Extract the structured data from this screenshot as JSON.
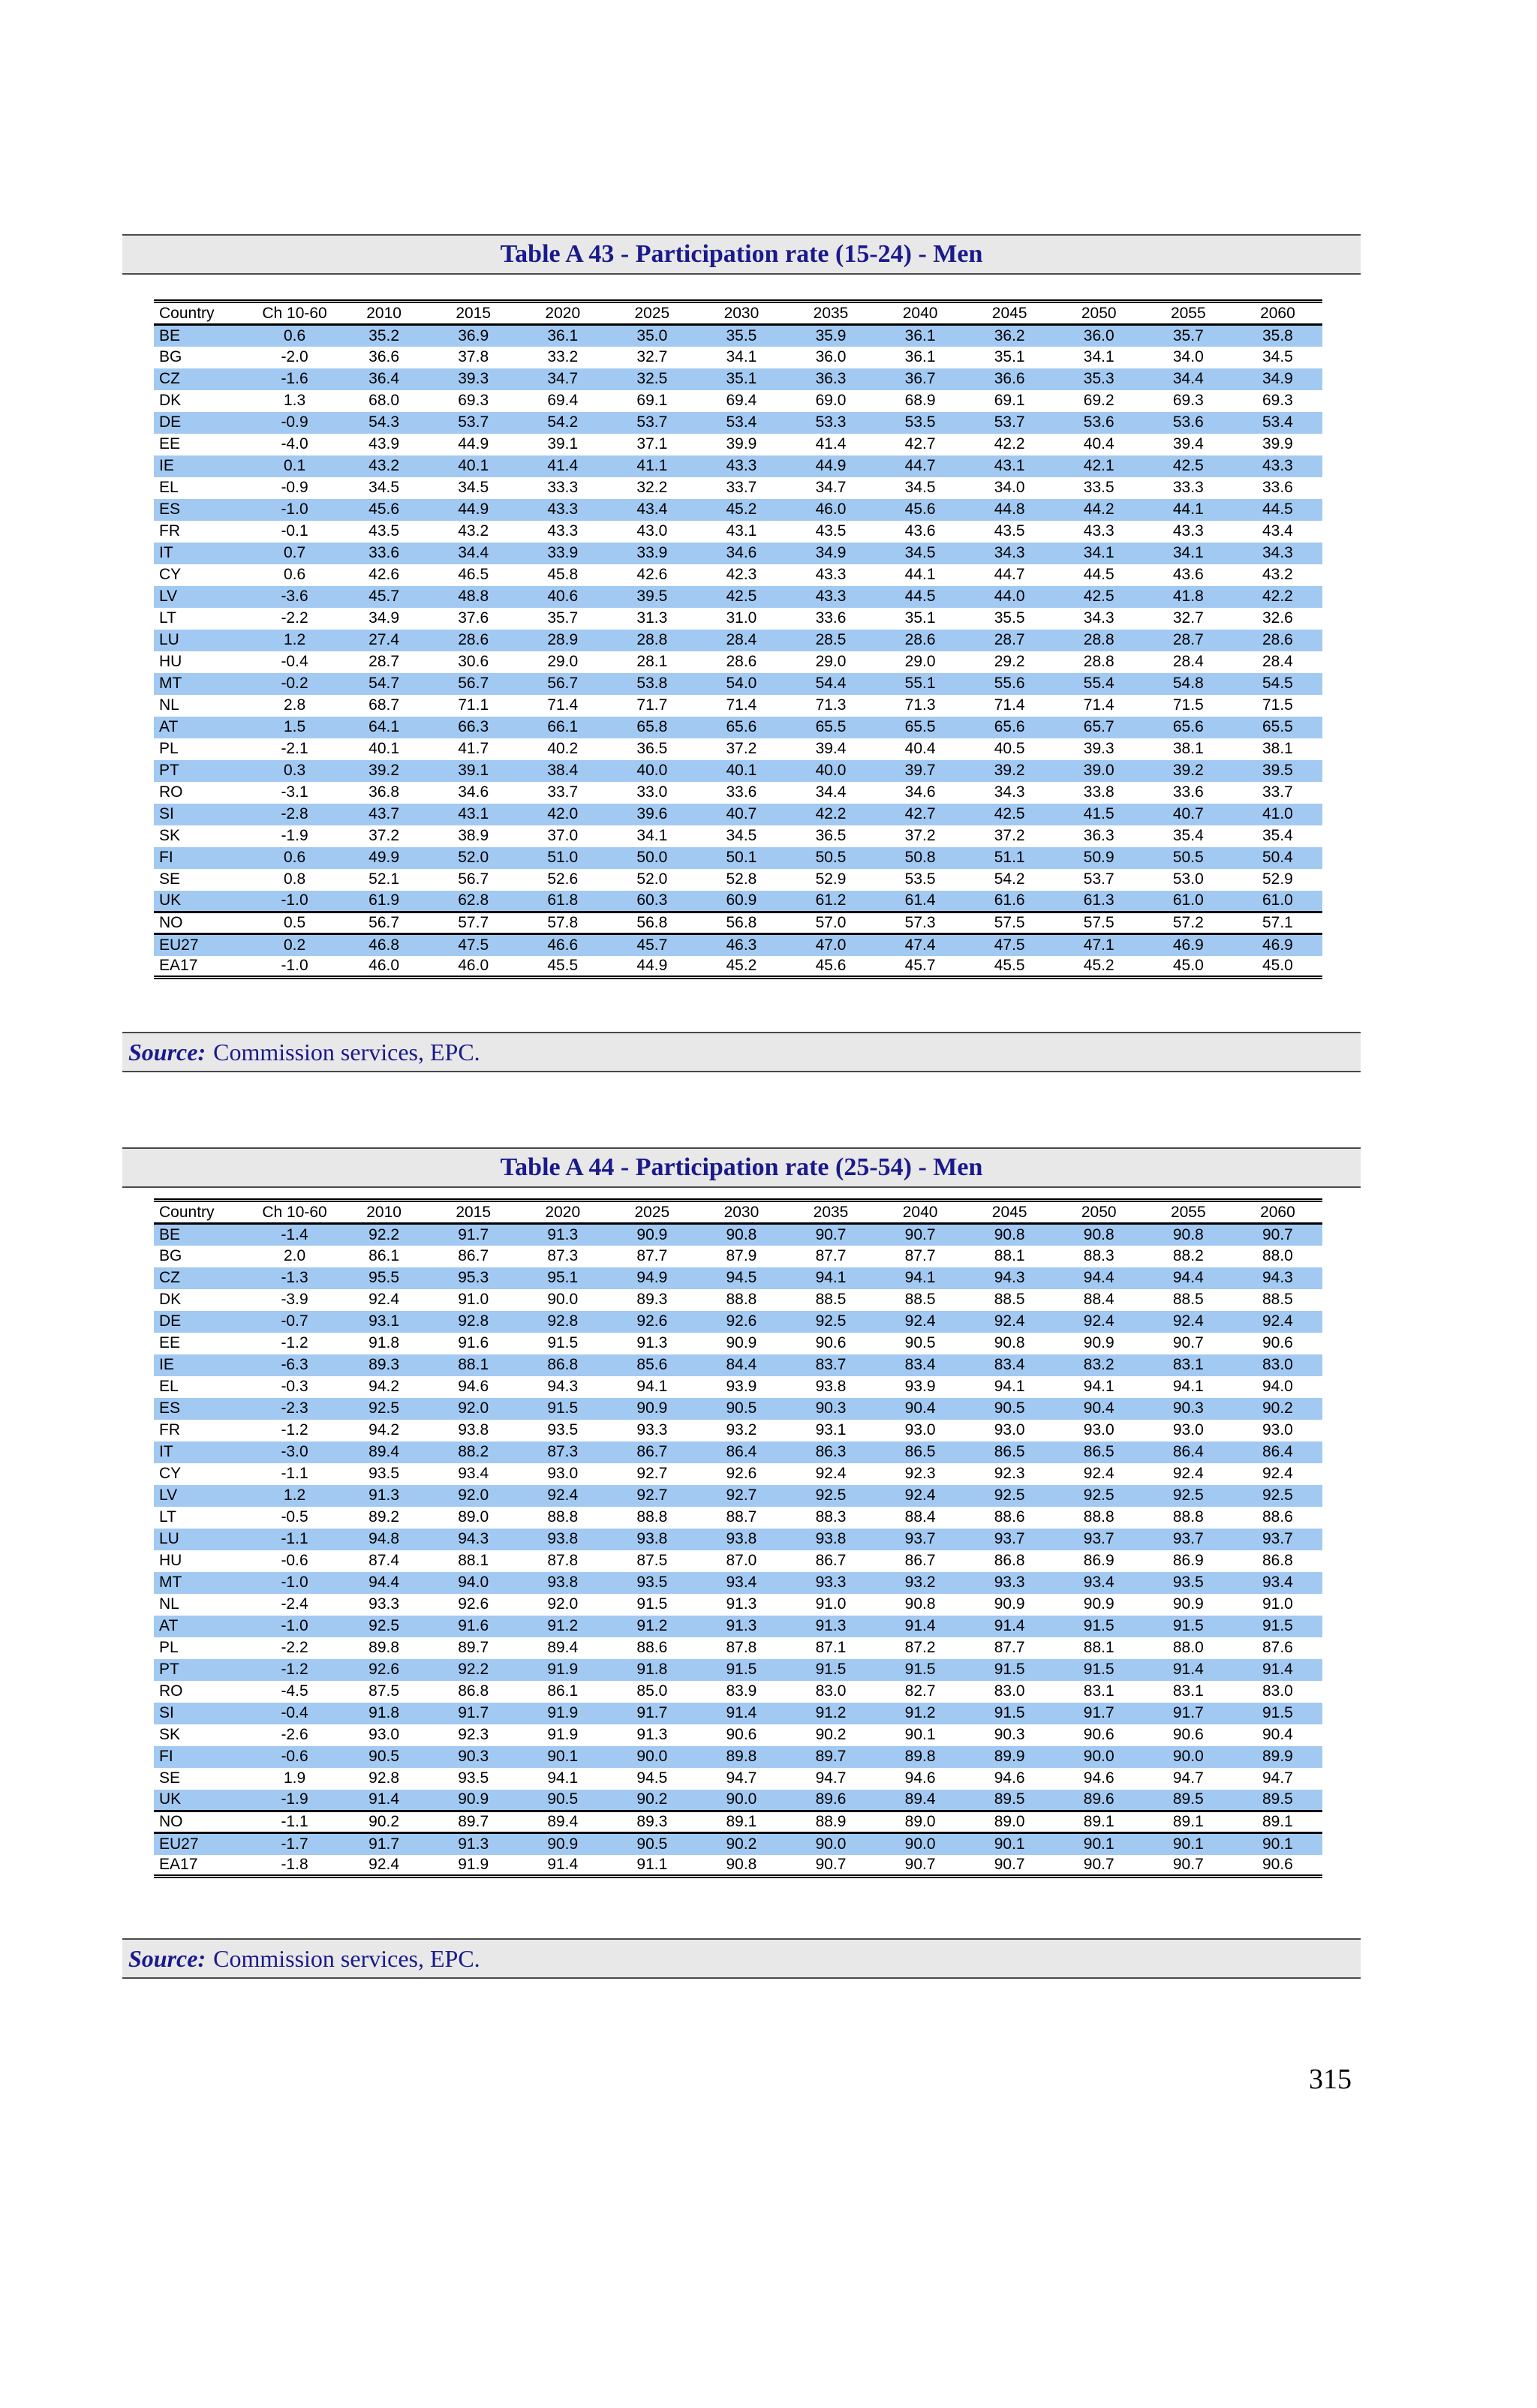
{
  "page": {
    "number": "315"
  },
  "colors": {
    "row_highlight": "#a2c9f2",
    "heading_text": "#1a1a8c",
    "banner_bg": "#e8e8e8"
  },
  "tables": [
    {
      "title": "Table A 43 - Participation rate (15-24) - Men",
      "source_label": "Source:",
      "source_text": "Commission services, EPC.",
      "columns": [
        "Country",
        "Ch 10-60",
        "2010",
        "2015",
        "2020",
        "2025",
        "2030",
        "2035",
        "2040",
        "2045",
        "2050",
        "2055",
        "2060"
      ],
      "thick_border_after": [
        "UK",
        "NO"
      ],
      "rows": [
        [
          "BE",
          "0.6",
          "35.2",
          "36.9",
          "36.1",
          "35.0",
          "35.5",
          "35.9",
          "36.1",
          "36.2",
          "36.0",
          "35.7",
          "35.8"
        ],
        [
          "BG",
          "-2.0",
          "36.6",
          "37.8",
          "33.2",
          "32.7",
          "34.1",
          "36.0",
          "36.1",
          "35.1",
          "34.1",
          "34.0",
          "34.5"
        ],
        [
          "CZ",
          "-1.6",
          "36.4",
          "39.3",
          "34.7",
          "32.5",
          "35.1",
          "36.3",
          "36.7",
          "36.6",
          "35.3",
          "34.4",
          "34.9"
        ],
        [
          "DK",
          "1.3",
          "68.0",
          "69.3",
          "69.4",
          "69.1",
          "69.4",
          "69.0",
          "68.9",
          "69.1",
          "69.2",
          "69.3",
          "69.3"
        ],
        [
          "DE",
          "-0.9",
          "54.3",
          "53.7",
          "54.2",
          "53.7",
          "53.4",
          "53.3",
          "53.5",
          "53.7",
          "53.6",
          "53.6",
          "53.4"
        ],
        [
          "EE",
          "-4.0",
          "43.9",
          "44.9",
          "39.1",
          "37.1",
          "39.9",
          "41.4",
          "42.7",
          "42.2",
          "40.4",
          "39.4",
          "39.9"
        ],
        [
          "IE",
          "0.1",
          "43.2",
          "40.1",
          "41.4",
          "41.1",
          "43.3",
          "44.9",
          "44.7",
          "43.1",
          "42.1",
          "42.5",
          "43.3"
        ],
        [
          "EL",
          "-0.9",
          "34.5",
          "34.5",
          "33.3",
          "32.2",
          "33.7",
          "34.7",
          "34.5",
          "34.0",
          "33.5",
          "33.3",
          "33.6"
        ],
        [
          "ES",
          "-1.0",
          "45.6",
          "44.9",
          "43.3",
          "43.4",
          "45.2",
          "46.0",
          "45.6",
          "44.8",
          "44.2",
          "44.1",
          "44.5"
        ],
        [
          "FR",
          "-0.1",
          "43.5",
          "43.2",
          "43.3",
          "43.0",
          "43.1",
          "43.5",
          "43.6",
          "43.5",
          "43.3",
          "43.3",
          "43.4"
        ],
        [
          "IT",
          "0.7",
          "33.6",
          "34.4",
          "33.9",
          "33.9",
          "34.6",
          "34.9",
          "34.5",
          "34.3",
          "34.1",
          "34.1",
          "34.3"
        ],
        [
          "CY",
          "0.6",
          "42.6",
          "46.5",
          "45.8",
          "42.6",
          "42.3",
          "43.3",
          "44.1",
          "44.7",
          "44.5",
          "43.6",
          "43.2"
        ],
        [
          "LV",
          "-3.6",
          "45.7",
          "48.8",
          "40.6",
          "39.5",
          "42.5",
          "43.3",
          "44.5",
          "44.0",
          "42.5",
          "41.8",
          "42.2"
        ],
        [
          "LT",
          "-2.2",
          "34.9",
          "37.6",
          "35.7",
          "31.3",
          "31.0",
          "33.6",
          "35.1",
          "35.5",
          "34.3",
          "32.7",
          "32.6"
        ],
        [
          "LU",
          "1.2",
          "27.4",
          "28.6",
          "28.9",
          "28.8",
          "28.4",
          "28.5",
          "28.6",
          "28.7",
          "28.8",
          "28.7",
          "28.6"
        ],
        [
          "HU",
          "-0.4",
          "28.7",
          "30.6",
          "29.0",
          "28.1",
          "28.6",
          "29.0",
          "29.0",
          "29.2",
          "28.8",
          "28.4",
          "28.4"
        ],
        [
          "MT",
          "-0.2",
          "54.7",
          "56.7",
          "56.7",
          "53.8",
          "54.0",
          "54.4",
          "55.1",
          "55.6",
          "55.4",
          "54.8",
          "54.5"
        ],
        [
          "NL",
          "2.8",
          "68.7",
          "71.1",
          "71.4",
          "71.7",
          "71.4",
          "71.3",
          "71.3",
          "71.4",
          "71.4",
          "71.5",
          "71.5"
        ],
        [
          "AT",
          "1.5",
          "64.1",
          "66.3",
          "66.1",
          "65.8",
          "65.6",
          "65.5",
          "65.5",
          "65.6",
          "65.7",
          "65.6",
          "65.5"
        ],
        [
          "PL",
          "-2.1",
          "40.1",
          "41.7",
          "40.2",
          "36.5",
          "37.2",
          "39.4",
          "40.4",
          "40.5",
          "39.3",
          "38.1",
          "38.1"
        ],
        [
          "PT",
          "0.3",
          "39.2",
          "39.1",
          "38.4",
          "40.0",
          "40.1",
          "40.0",
          "39.7",
          "39.2",
          "39.0",
          "39.2",
          "39.5"
        ],
        [
          "RO",
          "-3.1",
          "36.8",
          "34.6",
          "33.7",
          "33.0",
          "33.6",
          "34.4",
          "34.6",
          "34.3",
          "33.8",
          "33.6",
          "33.7"
        ],
        [
          "SI",
          "-2.8",
          "43.7",
          "43.1",
          "42.0",
          "39.6",
          "40.7",
          "42.2",
          "42.7",
          "42.5",
          "41.5",
          "40.7",
          "41.0"
        ],
        [
          "SK",
          "-1.9",
          "37.2",
          "38.9",
          "37.0",
          "34.1",
          "34.5",
          "36.5",
          "37.2",
          "37.2",
          "36.3",
          "35.4",
          "35.4"
        ],
        [
          "FI",
          "0.6",
          "49.9",
          "52.0",
          "51.0",
          "50.0",
          "50.1",
          "50.5",
          "50.8",
          "51.1",
          "50.9",
          "50.5",
          "50.4"
        ],
        [
          "SE",
          "0.8",
          "52.1",
          "56.7",
          "52.6",
          "52.0",
          "52.8",
          "52.9",
          "53.5",
          "54.2",
          "53.7",
          "53.0",
          "52.9"
        ],
        [
          "UK",
          "-1.0",
          "61.9",
          "62.8",
          "61.8",
          "60.3",
          "60.9",
          "61.2",
          "61.4",
          "61.6",
          "61.3",
          "61.0",
          "61.0"
        ],
        [
          "NO",
          "0.5",
          "56.7",
          "57.7",
          "57.8",
          "56.8",
          "56.8",
          "57.0",
          "57.3",
          "57.5",
          "57.5",
          "57.2",
          "57.1"
        ],
        [
          "EU27",
          "0.2",
          "46.8",
          "47.5",
          "46.6",
          "45.7",
          "46.3",
          "47.0",
          "47.4",
          "47.5",
          "47.1",
          "46.9",
          "46.9"
        ],
        [
          "EA17",
          "-1.0",
          "46.0",
          "46.0",
          "45.5",
          "44.9",
          "45.2",
          "45.6",
          "45.7",
          "45.5",
          "45.2",
          "45.0",
          "45.0"
        ]
      ]
    },
    {
      "title": "Table A 44 - Participation rate (25-54) - Men",
      "source_label": "Source:",
      "source_text": "Commission services, EPC.",
      "columns": [
        "Country",
        "Ch 10-60",
        "2010",
        "2015",
        "2020",
        "2025",
        "2030",
        "2035",
        "2040",
        "2045",
        "2050",
        "2055",
        "2060"
      ],
      "thick_border_after": [
        "UK",
        "NO"
      ],
      "rows": [
        [
          "BE",
          "-1.4",
          "92.2",
          "91.7",
          "91.3",
          "90.9",
          "90.8",
          "90.7",
          "90.7",
          "90.8",
          "90.8",
          "90.8",
          "90.7"
        ],
        [
          "BG",
          "2.0",
          "86.1",
          "86.7",
          "87.3",
          "87.7",
          "87.9",
          "87.7",
          "87.7",
          "88.1",
          "88.3",
          "88.2",
          "88.0"
        ],
        [
          "CZ",
          "-1.3",
          "95.5",
          "95.3",
          "95.1",
          "94.9",
          "94.5",
          "94.1",
          "94.1",
          "94.3",
          "94.4",
          "94.4",
          "94.3"
        ],
        [
          "DK",
          "-3.9",
          "92.4",
          "91.0",
          "90.0",
          "89.3",
          "88.8",
          "88.5",
          "88.5",
          "88.5",
          "88.4",
          "88.5",
          "88.5"
        ],
        [
          "DE",
          "-0.7",
          "93.1",
          "92.8",
          "92.8",
          "92.6",
          "92.6",
          "92.5",
          "92.4",
          "92.4",
          "92.4",
          "92.4",
          "92.4"
        ],
        [
          "EE",
          "-1.2",
          "91.8",
          "91.6",
          "91.5",
          "91.3",
          "90.9",
          "90.6",
          "90.5",
          "90.8",
          "90.9",
          "90.7",
          "90.6"
        ],
        [
          "IE",
          "-6.3",
          "89.3",
          "88.1",
          "86.8",
          "85.6",
          "84.4",
          "83.7",
          "83.4",
          "83.4",
          "83.2",
          "83.1",
          "83.0"
        ],
        [
          "EL",
          "-0.3",
          "94.2",
          "94.6",
          "94.3",
          "94.1",
          "93.9",
          "93.8",
          "93.9",
          "94.1",
          "94.1",
          "94.1",
          "94.0"
        ],
        [
          "ES",
          "-2.3",
          "92.5",
          "92.0",
          "91.5",
          "90.9",
          "90.5",
          "90.3",
          "90.4",
          "90.5",
          "90.4",
          "90.3",
          "90.2"
        ],
        [
          "FR",
          "-1.2",
          "94.2",
          "93.8",
          "93.5",
          "93.3",
          "93.2",
          "93.1",
          "93.0",
          "93.0",
          "93.0",
          "93.0",
          "93.0"
        ],
        [
          "IT",
          "-3.0",
          "89.4",
          "88.2",
          "87.3",
          "86.7",
          "86.4",
          "86.3",
          "86.5",
          "86.5",
          "86.5",
          "86.4",
          "86.4"
        ],
        [
          "CY",
          "-1.1",
          "93.5",
          "93.4",
          "93.0",
          "92.7",
          "92.6",
          "92.4",
          "92.3",
          "92.3",
          "92.4",
          "92.4",
          "92.4"
        ],
        [
          "LV",
          "1.2",
          "91.3",
          "92.0",
          "92.4",
          "92.7",
          "92.7",
          "92.5",
          "92.4",
          "92.5",
          "92.5",
          "92.5",
          "92.5"
        ],
        [
          "LT",
          "-0.5",
          "89.2",
          "89.0",
          "88.8",
          "88.8",
          "88.7",
          "88.3",
          "88.4",
          "88.6",
          "88.8",
          "88.8",
          "88.6"
        ],
        [
          "LU",
          "-1.1",
          "94.8",
          "94.3",
          "93.8",
          "93.8",
          "93.8",
          "93.8",
          "93.7",
          "93.7",
          "93.7",
          "93.7",
          "93.7"
        ],
        [
          "HU",
          "-0.6",
          "87.4",
          "88.1",
          "87.8",
          "87.5",
          "87.0",
          "86.7",
          "86.7",
          "86.8",
          "86.9",
          "86.9",
          "86.8"
        ],
        [
          "MT",
          "-1.0",
          "94.4",
          "94.0",
          "93.8",
          "93.5",
          "93.4",
          "93.3",
          "93.2",
          "93.3",
          "93.4",
          "93.5",
          "93.4"
        ],
        [
          "NL",
          "-2.4",
          "93.3",
          "92.6",
          "92.0",
          "91.5",
          "91.3",
          "91.0",
          "90.8",
          "90.9",
          "90.9",
          "90.9",
          "91.0"
        ],
        [
          "AT",
          "-1.0",
          "92.5",
          "91.6",
          "91.2",
          "91.2",
          "91.3",
          "91.3",
          "91.4",
          "91.4",
          "91.5",
          "91.5",
          "91.5"
        ],
        [
          "PL",
          "-2.2",
          "89.8",
          "89.7",
          "89.4",
          "88.6",
          "87.8",
          "87.1",
          "87.2",
          "87.7",
          "88.1",
          "88.0",
          "87.6"
        ],
        [
          "PT",
          "-1.2",
          "92.6",
          "92.2",
          "91.9",
          "91.8",
          "91.5",
          "91.5",
          "91.5",
          "91.5",
          "91.5",
          "91.4",
          "91.4"
        ],
        [
          "RO",
          "-4.5",
          "87.5",
          "86.8",
          "86.1",
          "85.0",
          "83.9",
          "83.0",
          "82.7",
          "83.0",
          "83.1",
          "83.1",
          "83.0"
        ],
        [
          "SI",
          "-0.4",
          "91.8",
          "91.7",
          "91.9",
          "91.7",
          "91.4",
          "91.2",
          "91.2",
          "91.5",
          "91.7",
          "91.7",
          "91.5"
        ],
        [
          "SK",
          "-2.6",
          "93.0",
          "92.3",
          "91.9",
          "91.3",
          "90.6",
          "90.2",
          "90.1",
          "90.3",
          "90.6",
          "90.6",
          "90.4"
        ],
        [
          "FI",
          "-0.6",
          "90.5",
          "90.3",
          "90.1",
          "90.0",
          "89.8",
          "89.7",
          "89.8",
          "89.9",
          "90.0",
          "90.0",
          "89.9"
        ],
        [
          "SE",
          "1.9",
          "92.8",
          "93.5",
          "94.1",
          "94.5",
          "94.7",
          "94.7",
          "94.6",
          "94.6",
          "94.6",
          "94.7",
          "94.7"
        ],
        [
          "UK",
          "-1.9",
          "91.4",
          "90.9",
          "90.5",
          "90.2",
          "90.0",
          "89.6",
          "89.4",
          "89.5",
          "89.6",
          "89.5",
          "89.5"
        ],
        [
          "NO",
          "-1.1",
          "90.2",
          "89.7",
          "89.4",
          "89.3",
          "89.1",
          "88.9",
          "89.0",
          "89.0",
          "89.1",
          "89.1",
          "89.1"
        ],
        [
          "EU27",
          "-1.7",
          "91.7",
          "91.3",
          "90.9",
          "90.5",
          "90.2",
          "90.0",
          "90.0",
          "90.1",
          "90.1",
          "90.1",
          "90.1"
        ],
        [
          "EA17",
          "-1.8",
          "92.4",
          "91.9",
          "91.4",
          "91.1",
          "90.8",
          "90.7",
          "90.7",
          "90.7",
          "90.7",
          "90.7",
          "90.6"
        ]
      ]
    }
  ]
}
